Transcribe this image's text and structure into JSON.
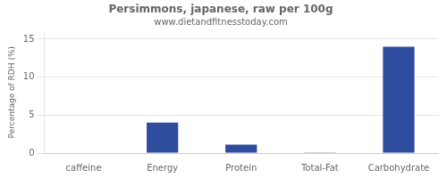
{
  "chart_data": {
    "type": "bar",
    "title": "Persimmons, japanese, raw per 100g",
    "subtitle": "www.dietandfitnesstoday.com",
    "categories": [
      "caffeine",
      "Energy",
      "Protein",
      "Total-Fat",
      "Carbohydrate"
    ],
    "values": [
      0,
      4.0,
      1.1,
      0.1,
      14.0
    ],
    "color": "#2e4d9e",
    "ylabel": "Percentage of RDH (%)",
    "ylim": [
      0,
      16
    ],
    "yticks": [
      0,
      5,
      10,
      15
    ],
    "grid": true
  }
}
